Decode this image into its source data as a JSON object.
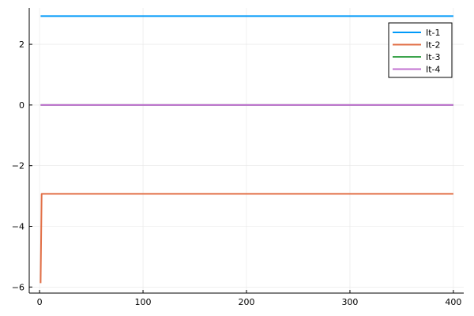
{
  "chart_data": {
    "type": "line",
    "title": "",
    "xlabel": "",
    "ylabel": "",
    "xlim": [
      -10,
      410
    ],
    "ylim": [
      -6.2,
      3.2
    ],
    "grid": true,
    "legend_position": "top-right",
    "x_ticks": [
      0,
      100,
      200,
      300,
      400
    ],
    "x_tick_labels": [
      "0",
      "100",
      "200",
      "300",
      "400"
    ],
    "y_ticks": [
      2,
      0,
      -2,
      -4,
      -6
    ],
    "y_tick_labels": [
      "2",
      "0",
      "−2",
      "−4",
      "−6"
    ],
    "series": [
      {
        "name": "It-1",
        "color": "#009af9",
        "points": [
          [
            1,
            2.93
          ],
          [
            400,
            2.93
          ]
        ]
      },
      {
        "name": "It-2",
        "color": "#e26f46",
        "points": [
          [
            1,
            -5.87
          ],
          [
            2,
            -2.93
          ],
          [
            400,
            -2.93
          ]
        ]
      },
      {
        "name": "It-3",
        "color": "#3da44d",
        "points": [
          [
            1,
            0
          ],
          [
            400,
            0
          ]
        ]
      },
      {
        "name": "It-4",
        "color": "#c271d2",
        "points": [
          [
            1,
            0
          ],
          [
            400,
            0
          ]
        ]
      }
    ]
  }
}
